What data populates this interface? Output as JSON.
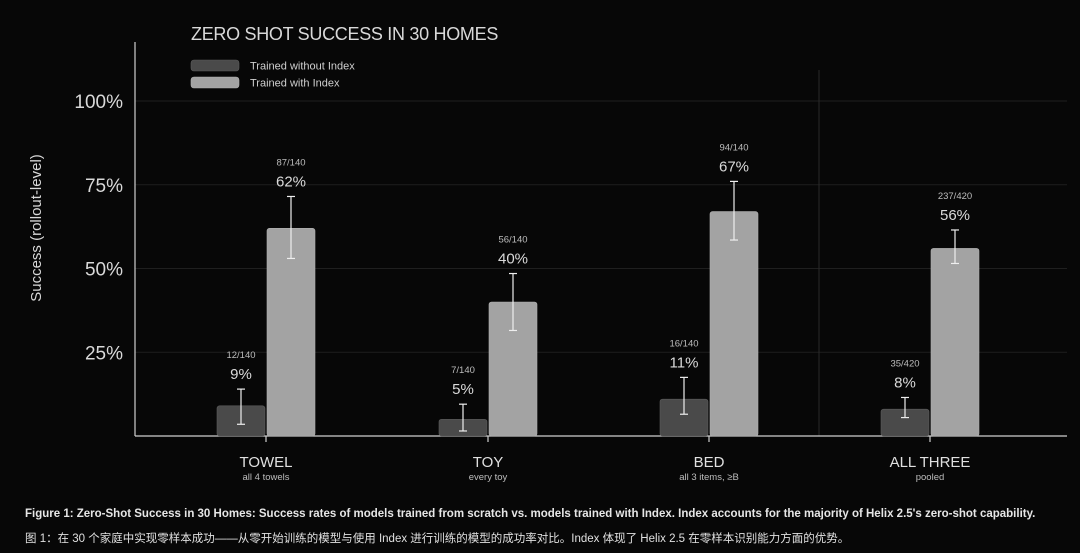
{
  "chart_data": {
    "type": "bar",
    "title": "ZERO SHOT SUCCESS IN 30 HOMES",
    "ylabel": "Success (rollout-level)",
    "ylim": [
      0,
      100
    ],
    "yticks": [
      25,
      50,
      75,
      100
    ],
    "ytick_labels": [
      "25%",
      "50%",
      "75%",
      "100%"
    ],
    "legend_position": "top-left",
    "grid": true,
    "categories": [
      {
        "label": "TOWEL",
        "sublabel": "all 4 towels"
      },
      {
        "label": "TOY",
        "sublabel": "every toy"
      },
      {
        "label": "BED",
        "sublabel": "all 3 items, ≥B"
      },
      {
        "label": "ALL THREE",
        "sublabel": "pooled"
      }
    ],
    "series": [
      {
        "name": "Trained without Index",
        "color": "#4a4a4a",
        "values": [
          9,
          5,
          11,
          8
        ],
        "value_labels": [
          "9%",
          "5%",
          "11%",
          "8%"
        ],
        "count_labels": [
          "12/140",
          "7/140",
          "16/140",
          "35/420"
        ],
        "error_low": [
          3.5,
          1.5,
          6.5,
          5.5
        ],
        "error_high": [
          14,
          9.5,
          17.5,
          11.5
        ]
      },
      {
        "name": "Trained with Index",
        "color": "#a3a3a3",
        "values": [
          62,
          40,
          67,
          56
        ],
        "value_labels": [
          "62%",
          "40%",
          "67%",
          "56%"
        ],
        "count_labels": [
          "87/140",
          "56/140",
          "94/140",
          "237/420"
        ],
        "error_low": [
          53,
          31.5,
          58.5,
          51.5
        ],
        "error_high": [
          71.5,
          48.5,
          76,
          61.5
        ]
      }
    ]
  },
  "caption": {
    "en": "Figure 1: Zero-Shot Success in 30 Homes: Success rates of models trained from scratch vs. models trained with Index. Index accounts for the majority of Helix 2.5's zero-shot capability.",
    "cn": "图 1：在 30 个家庭中实现零样本成功——从零开始训练的模型与使用 Index 进行训练的模型的成功率对比。Index 体现了 Helix 2.5 在零样本识别能力方面的优势。"
  }
}
